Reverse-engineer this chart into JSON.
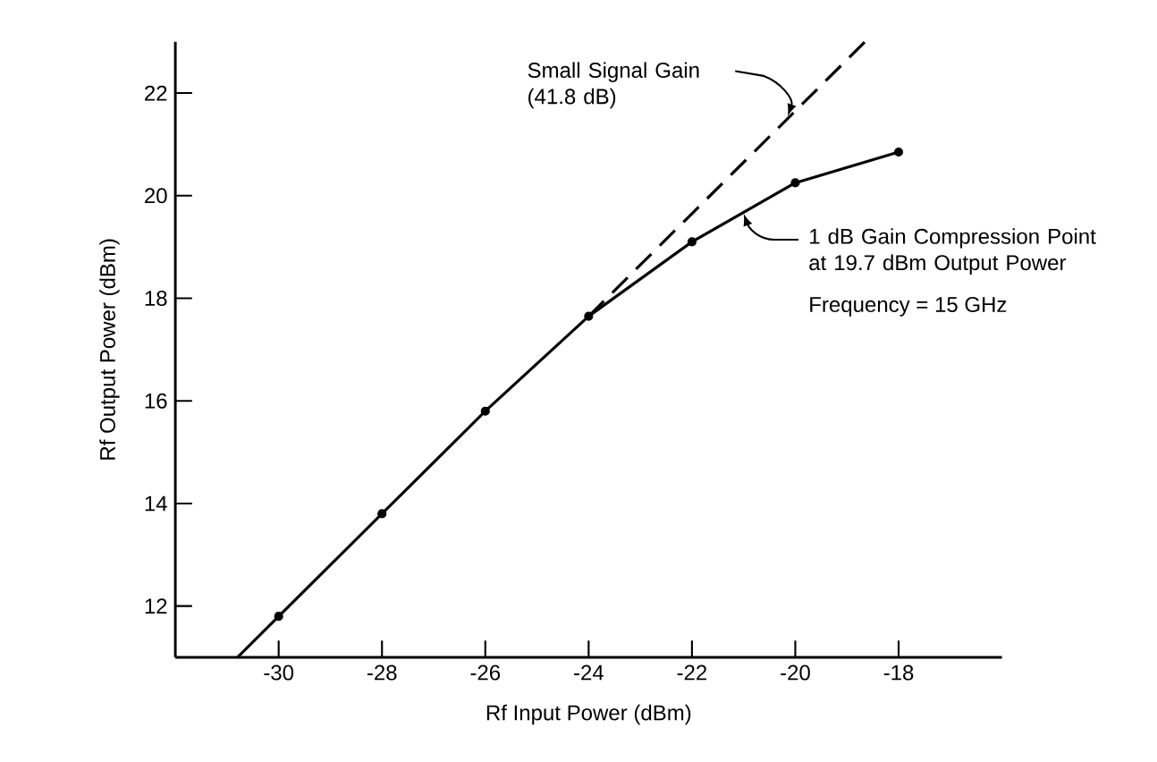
{
  "chart_data": {
    "type": "line",
    "xlabel": "Rf Input Power (dBm)",
    "ylabel": "Rf Output Power (dBm)",
    "xlim": [
      -32,
      -16
    ],
    "ylim": [
      11,
      23
    ],
    "xticks": [
      -30,
      -28,
      -26,
      -24,
      -22,
      -20,
      -18
    ],
    "yticks": [
      12,
      14,
      16,
      18,
      20,
      22
    ],
    "series": [
      {
        "type": "line",
        "color": "#000000",
        "line_style": "solid",
        "marker": "none",
        "x": [
          -30.8,
          -30,
          -28,
          -26,
          -24,
          -22,
          -20,
          -18
        ],
        "values": [
          11,
          11.8,
          13.8,
          15.8,
          17.65,
          19.1,
          20.25,
          20.85
        ]
      },
      {
        "type": "scatter",
        "color": "#000000",
        "marker": "circle",
        "x": [
          -30,
          -28,
          -26,
          -24,
          -22,
          -20,
          -18
        ],
        "values": [
          11.8,
          13.8,
          15.8,
          17.65,
          19.1,
          20.25,
          20.85
        ]
      },
      {
        "type": "line",
        "color": "#000000",
        "line_style": "dashed",
        "marker": "none",
        "x": [
          -24,
          -18.65
        ],
        "values": [
          17.65,
          23
        ]
      }
    ],
    "annotations": [
      "Small Signal Gain (41.8 dB)",
      {
        "text": "1 dB Gain Compression Point at 19.7 dBm Output Power",
        "x": -21,
        "y": 19.7
      },
      "Frequency = 15 GHz"
    ]
  }
}
